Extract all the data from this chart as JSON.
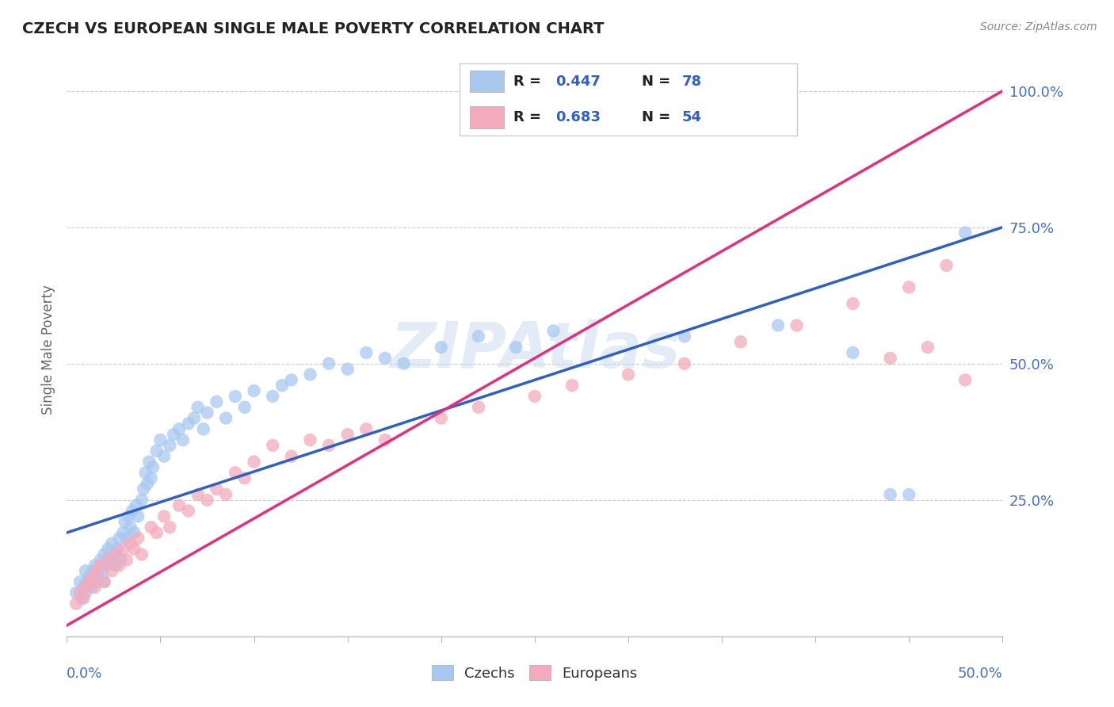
{
  "title": "CZECH VS EUROPEAN SINGLE MALE POVERTY CORRELATION CHART",
  "source": "Source: ZipAtlas.com",
  "ylabel": "Single Male Poverty",
  "xlim": [
    0.0,
    0.5
  ],
  "ylim": [
    0.0,
    1.05
  ],
  "y_ticks": [
    0.0,
    0.25,
    0.5,
    0.75,
    1.0
  ],
  "y_tick_labels": [
    "",
    "25.0%",
    "50.0%",
    "75.0%",
    "100.0%"
  ],
  "blue_color": "#A8C8F0",
  "pink_color": "#F4AABC",
  "blue_line_color": "#3060C0",
  "pink_line_color": "#E03080",
  "watermark_color": "#C8D8F0",
  "grid_color": "#CCCCCC",
  "title_color": "#222222",
  "axis_label_color": "#4472C4",
  "source_color": "#888888",
  "ylabel_color": "#666666",
  "legend_blue_R": "0.447",
  "legend_blue_N": "78",
  "legend_pink_R": "0.683",
  "legend_pink_N": "54",
  "blue_line_x0": 0.0,
  "blue_line_y0": 0.19,
  "blue_line_x1": 0.5,
  "blue_line_y1": 0.75,
  "pink_line_x0": 0.0,
  "pink_line_y0": 0.02,
  "pink_line_x1": 0.5,
  "pink_line_y1": 1.0,
  "czechs_x": [
    0.005,
    0.007,
    0.008,
    0.009,
    0.01,
    0.01,
    0.011,
    0.012,
    0.013,
    0.014,
    0.015,
    0.016,
    0.017,
    0.018,
    0.019,
    0.02,
    0.02,
    0.021,
    0.022,
    0.023,
    0.024,
    0.025,
    0.026,
    0.027,
    0.028,
    0.029,
    0.03,
    0.031,
    0.032,
    0.033,
    0.034,
    0.035,
    0.036,
    0.037,
    0.038,
    0.04,
    0.041,
    0.042,
    0.043,
    0.044,
    0.045,
    0.046,
    0.048,
    0.05,
    0.052,
    0.055,
    0.057,
    0.06,
    0.062,
    0.065,
    0.068,
    0.07,
    0.073,
    0.075,
    0.08,
    0.085,
    0.09,
    0.095,
    0.1,
    0.11,
    0.115,
    0.12,
    0.13,
    0.14,
    0.15,
    0.16,
    0.17,
    0.18,
    0.2,
    0.22,
    0.24,
    0.26,
    0.33,
    0.38,
    0.42,
    0.44,
    0.45,
    0.48
  ],
  "czechs_y": [
    0.08,
    0.1,
    0.07,
    0.09,
    0.12,
    0.08,
    0.1,
    0.11,
    0.09,
    0.12,
    0.13,
    0.1,
    0.11,
    0.14,
    0.12,
    0.15,
    0.1,
    0.13,
    0.16,
    0.14,
    0.17,
    0.15,
    0.13,
    0.16,
    0.18,
    0.14,
    0.19,
    0.21,
    0.18,
    0.22,
    0.2,
    0.23,
    0.19,
    0.24,
    0.22,
    0.25,
    0.27,
    0.3,
    0.28,
    0.32,
    0.29,
    0.31,
    0.34,
    0.36,
    0.33,
    0.35,
    0.37,
    0.38,
    0.36,
    0.39,
    0.4,
    0.42,
    0.38,
    0.41,
    0.43,
    0.4,
    0.44,
    0.42,
    0.45,
    0.44,
    0.46,
    0.47,
    0.48,
    0.5,
    0.49,
    0.52,
    0.51,
    0.5,
    0.53,
    0.55,
    0.53,
    0.56,
    0.55,
    0.57,
    0.52,
    0.26,
    0.26,
    0.74
  ],
  "europeans_x": [
    0.005,
    0.007,
    0.009,
    0.01,
    0.012,
    0.014,
    0.015,
    0.016,
    0.018,
    0.02,
    0.022,
    0.024,
    0.026,
    0.028,
    0.03,
    0.032,
    0.034,
    0.036,
    0.038,
    0.04,
    0.045,
    0.048,
    0.052,
    0.055,
    0.06,
    0.065,
    0.07,
    0.075,
    0.08,
    0.085,
    0.09,
    0.095,
    0.1,
    0.11,
    0.12,
    0.13,
    0.14,
    0.15,
    0.16,
    0.17,
    0.2,
    0.22,
    0.25,
    0.27,
    0.3,
    0.33,
    0.36,
    0.39,
    0.42,
    0.44,
    0.45,
    0.46,
    0.47,
    0.48
  ],
  "europeans_y": [
    0.06,
    0.08,
    0.07,
    0.09,
    0.1,
    0.11,
    0.09,
    0.12,
    0.13,
    0.1,
    0.14,
    0.12,
    0.15,
    0.13,
    0.16,
    0.14,
    0.17,
    0.16,
    0.18,
    0.15,
    0.2,
    0.19,
    0.22,
    0.2,
    0.24,
    0.23,
    0.26,
    0.25,
    0.27,
    0.26,
    0.3,
    0.29,
    0.32,
    0.35,
    0.33,
    0.36,
    0.35,
    0.37,
    0.38,
    0.36,
    0.4,
    0.42,
    0.44,
    0.46,
    0.48,
    0.5,
    0.54,
    0.57,
    0.61,
    0.51,
    0.64,
    0.53,
    0.68,
    0.47
  ]
}
